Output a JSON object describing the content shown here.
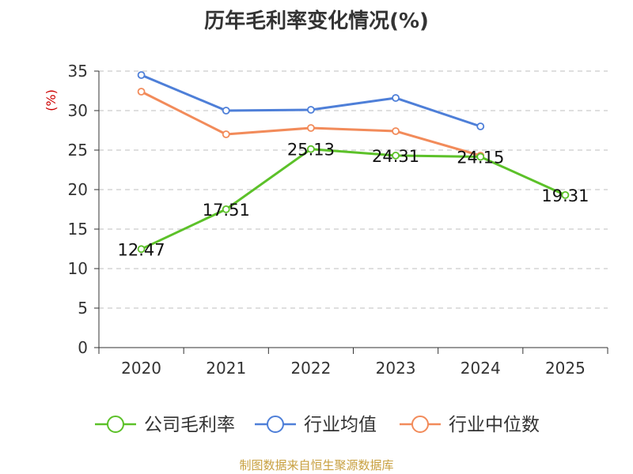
{
  "chart_data": {
    "type": "line",
    "title": "历年毛利率变化情况(%)",
    "ylabel": "(%)",
    "xlabel": "",
    "categories": [
      "2020",
      "2021",
      "2022",
      "2023",
      "2024",
      "2025"
    ],
    "ylim": [
      0,
      35
    ],
    "yticks": [
      0,
      5,
      10,
      15,
      20,
      25,
      30,
      35
    ],
    "grid": true,
    "legend_position": "bottom",
    "series": [
      {
        "name": "公司毛利率",
        "color": "#5cc129",
        "values": [
          12.47,
          17.51,
          25.13,
          24.31,
          24.15,
          19.31
        ],
        "labels": [
          "12.47",
          "17.51",
          "25.13",
          "24.31",
          "24.15",
          "19.31"
        ]
      },
      {
        "name": "行业均值",
        "color": "#4e7fd8",
        "values": [
          34.5,
          30.0,
          30.1,
          31.6,
          28.0,
          null
        ]
      },
      {
        "name": "行业中位数",
        "color": "#f28b5a",
        "values": [
          32.4,
          27.0,
          27.8,
          27.4,
          24.3,
          null
        ]
      }
    ]
  },
  "source": "制图数据来自恒生聚源数据库"
}
